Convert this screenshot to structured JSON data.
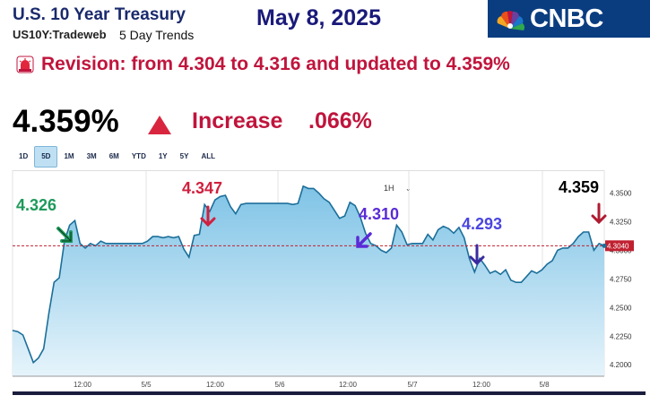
{
  "header": {
    "title": "U.S. 10 Year Treasury",
    "symbol": "US10Y:Tradeweb",
    "trend_label": "5 Day Trends",
    "date": "May 8, 2025",
    "logo_text": "CNBC"
  },
  "revision": {
    "icon": "siren-icon",
    "text": "Revision: from 4.304 to 4.316 and updated to 4.359%"
  },
  "quote": {
    "price": "4.359%",
    "direction_icon": "triangle-up-icon",
    "status": "Increase",
    "change": ".066%"
  },
  "range_tabs": [
    "1D",
    "5D",
    "1M",
    "3M",
    "6M",
    "YTD",
    "1Y",
    "5Y",
    "ALL"
  ],
  "active_tab": "5D",
  "interval": "1H",
  "annotations": [
    {
      "label": "4.326",
      "color": "#1e9a5a",
      "arrow": "arrow-down-right-icon"
    },
    {
      "label": "4.347",
      "color": "#d0203d",
      "arrow": "arrow-down-icon"
    },
    {
      "label": "4.310",
      "color": "#5a2bd6",
      "arrow": "arrow-down-left-icon"
    },
    {
      "label": "4.293",
      "color": "#4a45e0",
      "arrow": "arrow-down-icon"
    },
    {
      "label": "4.359",
      "color": "#000000",
      "arrow": "arrow-down-icon"
    }
  ],
  "chart_data": {
    "type": "area",
    "reference_line": 4.304,
    "reference_label": "4.3040",
    "ylim": [
      4.19,
      4.37
    ],
    "yticks": [
      "4.3500",
      "4.3250",
      "4.3000",
      "4.2750",
      "4.2500",
      "4.2250",
      "4.2000"
    ],
    "ytick_values": [
      4.35,
      4.325,
      4.3,
      4.275,
      4.25,
      4.225,
      4.2
    ],
    "xticks": [
      "12:00",
      "5/5",
      "12:00",
      "5/6",
      "12:00",
      "5/7",
      "12:00",
      "5/8"
    ],
    "series": [
      {
        "values": [
          4.23,
          4.229,
          4.226,
          4.214,
          4.202,
          4.206,
          4.214,
          4.245,
          4.272,
          4.276,
          4.308,
          4.322,
          4.326,
          4.306,
          4.302,
          4.306,
          4.304,
          4.308,
          4.306,
          4.306,
          4.306,
          4.306,
          4.306,
          4.306,
          4.306,
          4.306,
          4.308,
          4.312,
          4.312,
          4.311,
          4.312,
          4.311,
          4.312,
          4.301,
          4.294,
          4.313,
          4.314,
          4.34,
          4.334,
          4.344,
          4.347,
          4.348,
          4.338,
          4.332,
          4.34,
          4.341,
          4.341,
          4.341,
          4.341,
          4.341,
          4.341,
          4.341,
          4.341,
          4.341,
          4.34,
          4.341,
          4.356,
          4.354,
          4.354,
          4.35,
          4.345,
          4.342,
          4.335,
          4.328,
          4.33,
          4.342,
          4.339,
          4.329,
          4.315,
          4.306,
          4.304,
          4.3,
          4.298,
          4.302,
          4.322,
          4.316,
          4.305,
          4.306,
          4.306,
          4.306,
          4.314,
          4.309,
          4.318,
          4.321,
          4.319,
          4.315,
          4.32,
          4.311,
          4.293,
          4.281,
          4.293,
          4.287,
          4.28,
          4.282,
          4.279,
          4.283,
          4.274,
          4.272,
          4.272,
          4.277,
          4.282,
          4.28,
          4.283,
          4.288,
          4.291,
          4.3,
          4.302,
          4.302,
          4.306,
          4.312,
          4.316,
          4.316,
          4.3,
          4.306,
          4.304
        ]
      }
    ]
  }
}
